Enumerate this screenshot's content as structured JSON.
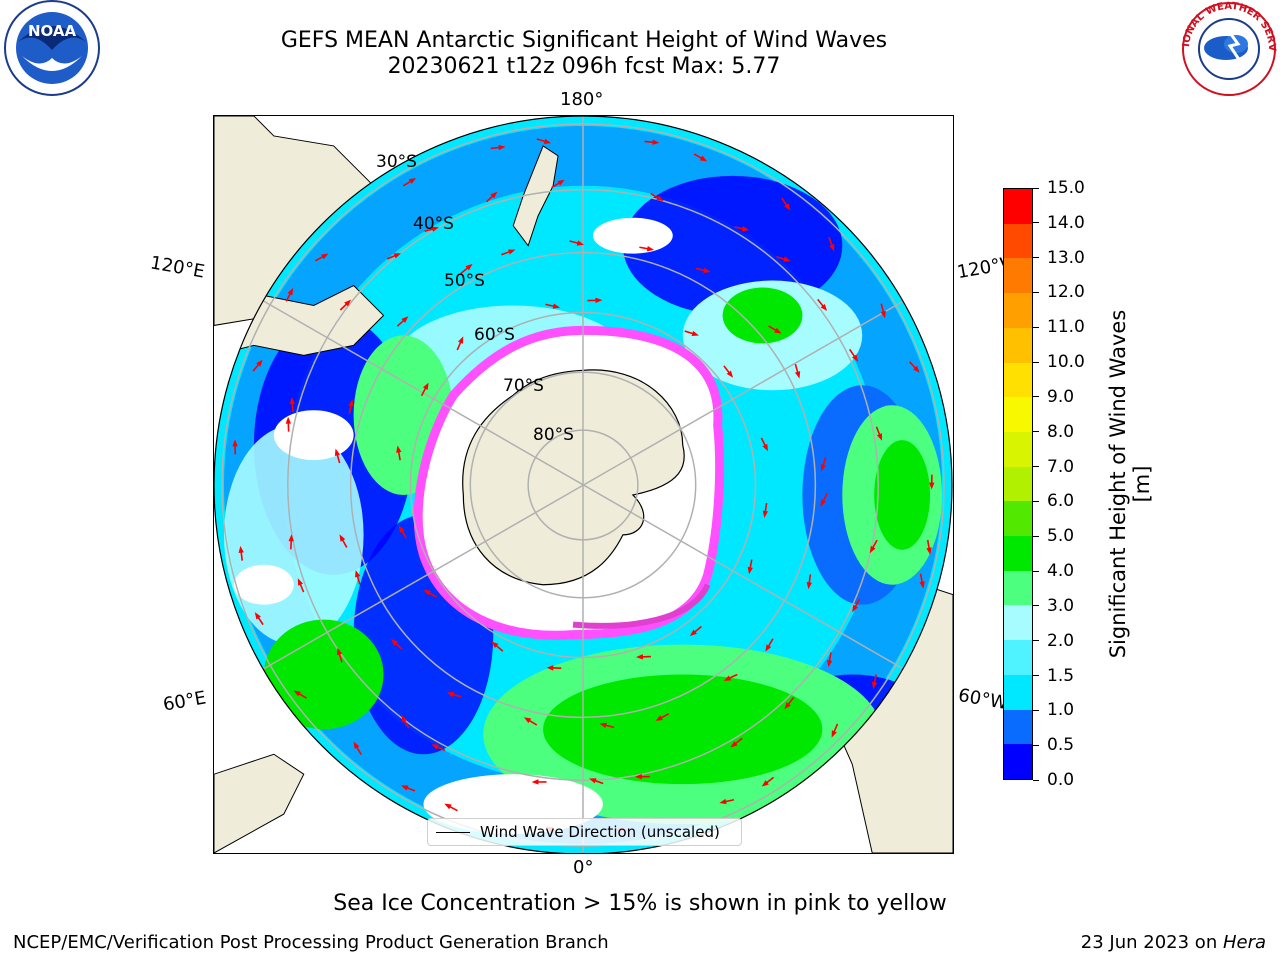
{
  "header": {
    "title_line1": "GEFS MEAN Antarctic Significant Height of Wind Waves",
    "title_line2": "20230621 t12z 096h fcst   Max: 5.77"
  },
  "map": {
    "longitude_labels": {
      "top": "180°",
      "bottom": "0°",
      "upper_left": "120°E",
      "upper_right": "120°W",
      "lower_left": "60°E",
      "lower_right": "60°W"
    },
    "latitude_labels": [
      "30°S",
      "40°S",
      "50°S",
      "60°S",
      "70°S",
      "80°S"
    ],
    "legend": {
      "label": "Wind Wave Direction (unscaled)"
    },
    "colors": {
      "land": "#efedda",
      "sea_ice": "#ffffff",
      "arrow": "#ff0000",
      "grid": "#b0b0b0"
    }
  },
  "colorbar": {
    "label": "Significant Height of Wind Waves [m]",
    "ticks": [
      "0.0",
      "0.5",
      "1.0",
      "1.5",
      "2.0",
      "3.0",
      "4.0",
      "5.0",
      "6.0",
      "7.0",
      "8.0",
      "9.0",
      "10.0",
      "11.0",
      "12.0",
      "13.0",
      "14.0",
      "15.0"
    ],
    "colors": [
      "#0000ff",
      "#0a6cff",
      "#00e8ff",
      "#4ff2ff",
      "#a6fcff",
      "#4cff7e",
      "#00e800",
      "#52e800",
      "#b0f000",
      "#d8f400",
      "#f8f800",
      "#ffe000",
      "#ffc000",
      "#ffa000",
      "#ff7a00",
      "#ff4a00",
      "#ff0000"
    ]
  },
  "footer": {
    "note": "Sea Ice Concentration > 15% is shown in pink to yellow",
    "credit_left": "NCEP/EMC/Verification Post Processing Product Generation Branch",
    "credit_right_prefix": "23 Jun 2023 on ",
    "credit_right_host": "Hera"
  },
  "logos": {
    "noaa_text": "NOAA",
    "nws_text": "NATIONAL WEATHER SERVICE"
  }
}
